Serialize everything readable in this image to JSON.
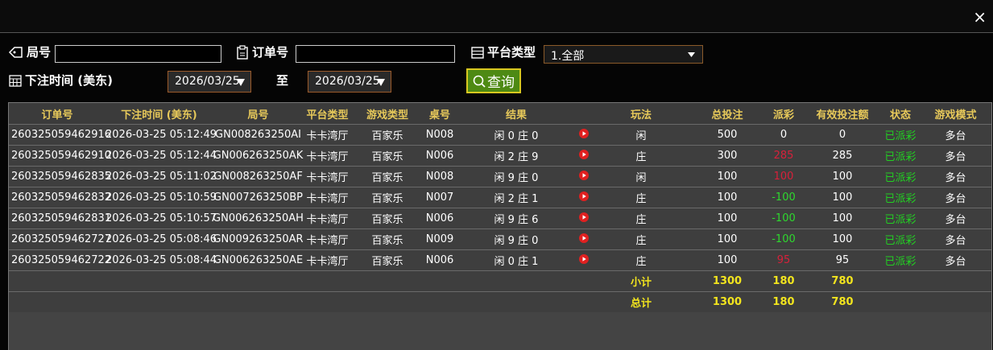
{
  "close": "×",
  "filters": {
    "round_label": "局号",
    "order_label": "订单号",
    "platform_label": "平台类型",
    "platform_value": "1.全部",
    "time_label": "下注时间 (美东)",
    "date_from": "2026/03/25",
    "to": "至",
    "date_to": "2026/03/25",
    "query_button": "查询"
  },
  "table": {
    "columns": [
      "订单号",
      "下注时间 (美东)",
      "局号",
      "平台类型",
      "游戏类型",
      "桌号",
      "结果",
      "玩法",
      "总投注",
      "派彩",
      "有效投注额",
      "状态",
      "游戏模式"
    ],
    "rows": [
      [
        "260325059462916",
        "2026-03-25 05:12:49",
        "GN008263250AI",
        "卡卡湾厅",
        "百家乐",
        "N008",
        "闲 0 庄 0",
        "闲",
        500,
        0,
        0,
        "已派彩",
        "多台"
      ],
      [
        "260325059462910",
        "2026-03-25 05:12:44",
        "GN006263250AK",
        "卡卡湾厅",
        "百家乐",
        "N006",
        "闲 2 庄 9",
        "庄",
        300,
        285,
        285,
        "已派彩",
        "多台"
      ],
      [
        "260325059462835",
        "2026-03-25 05:11:02",
        "GN008263250AF",
        "卡卡湾厅",
        "百家乐",
        "N008",
        "闲 9 庄 0",
        "闲",
        100,
        100,
        100,
        "已派彩",
        "多台"
      ],
      [
        "260325059462832",
        "2026-03-25 05:10:59",
        "GN007263250BP",
        "卡卡湾厅",
        "百家乐",
        "N007",
        "闲 2 庄 1",
        "庄",
        100,
        -100,
        100,
        "已派彩",
        "多台"
      ],
      [
        "260325059462831",
        "2026-03-25 05:10:57",
        "GN006263250AH",
        "卡卡湾厅",
        "百家乐",
        "N006",
        "闲 9 庄 6",
        "庄",
        100,
        -100,
        100,
        "已派彩",
        "多台"
      ],
      [
        "260325059462727",
        "2026-03-25 05:08:46",
        "GN009263250AR",
        "卡卡湾厅",
        "百家乐",
        "N009",
        "闲 9 庄 0",
        "庄",
        100,
        -100,
        100,
        "已派彩",
        "多台"
      ],
      [
        "260325059462722",
        "2026-03-25 05:08:44",
        "GN006263250AE",
        "卡卡湾厅",
        "百家乐",
        "N006",
        "闲 0 庄 1",
        "庄",
        100,
        95,
        95,
        "已派彩",
        "多台"
      ]
    ],
    "summary": [
      {
        "label": "小计",
        "total_bet": 1300,
        "payout": 180,
        "valid_bet": 780
      },
      {
        "label": "总计",
        "total_bet": 1300,
        "payout": 180,
        "valid_bet": 780
      }
    ]
  }
}
